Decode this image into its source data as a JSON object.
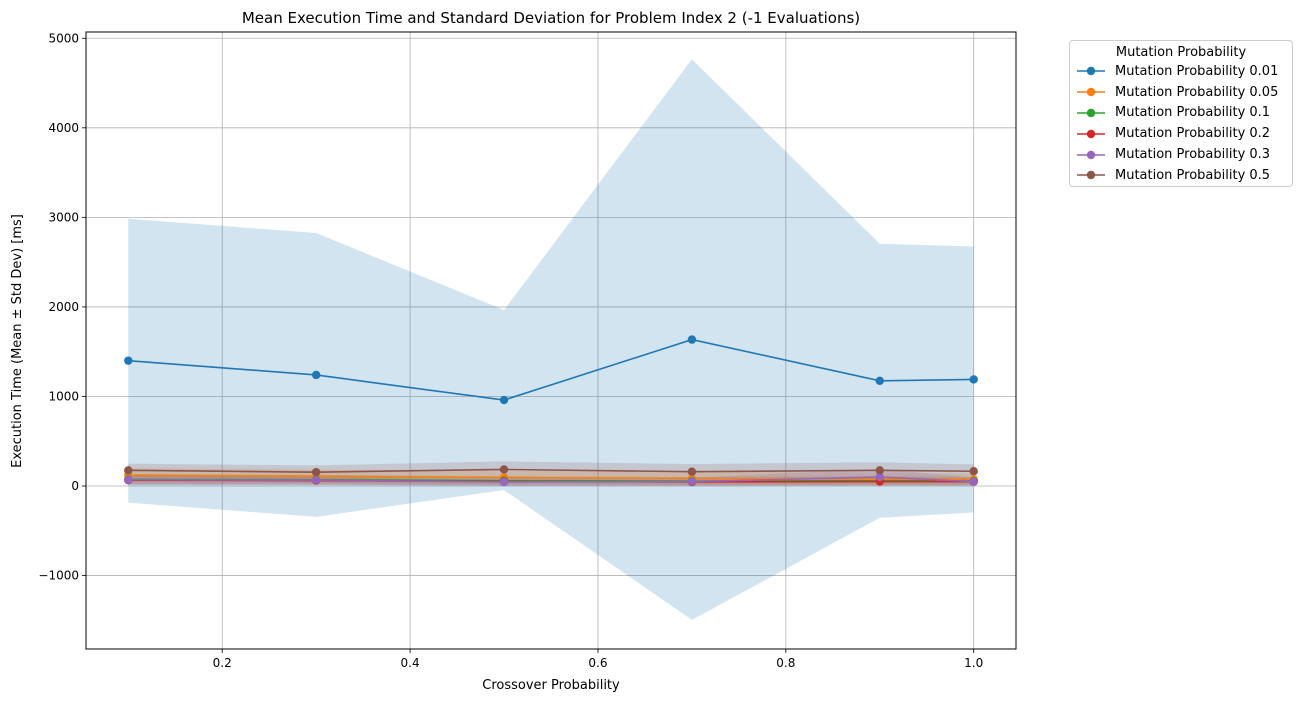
{
  "chart_data": {
    "type": "line",
    "title": "Mean Execution Time and Standard Deviation for Problem Index 2 (-1 Evaluations)",
    "xlabel": "Crossover Probability",
    "ylabel": "Execution Time (Mean ± Std Dev) [ms]",
    "xlim": [
      0.055,
      1.045
    ],
    "ylim": [
      -1820,
      5070
    ],
    "xticks": [
      0.2,
      0.4,
      0.6,
      0.8,
      1.0
    ],
    "xtick_labels": [
      "0.2",
      "0.4",
      "0.6",
      "0.8",
      "1.0"
    ],
    "yticks": [
      -1000,
      0,
      1000,
      2000,
      3000,
      4000,
      5000
    ],
    "ytick_labels": [
      "−1000",
      "0",
      "1000",
      "2000",
      "3000",
      "4000",
      "5000"
    ],
    "grid": true,
    "legend_position": "outside-top-right",
    "legend_title": "Mutation Probability",
    "x": [
      0.1,
      0.3,
      0.5,
      0.7,
      0.9,
      1.0
    ],
    "series": [
      {
        "name": "Mutation Probability 0.01",
        "color": "#1f77b4",
        "values": [
          1400,
          1240,
          960,
          1635,
          1175,
          1190
        ],
        "upper": [
          2985,
          2825,
          1965,
          4765,
          2705,
          2675
        ],
        "lower": [
          -185,
          -345,
          -45,
          -1495,
          -355,
          -295
        ]
      },
      {
        "name": "Mutation Probability 0.05",
        "color": "#ff7f0e",
        "values": [
          120,
          110,
          95,
          85,
          80,
          75
        ],
        "upper": [
          200,
          185,
          170,
          160,
          150,
          140
        ],
        "lower": [
          40,
          35,
          20,
          10,
          10,
          10
        ]
      },
      {
        "name": "Mutation Probability 0.1",
        "color": "#2ca02c",
        "values": [
          75,
          70,
          60,
          55,
          60,
          55
        ],
        "upper": [
          135,
          125,
          110,
          100,
          110,
          100
        ],
        "lower": [
          15,
          15,
          10,
          10,
          10,
          10
        ]
      },
      {
        "name": "Mutation Probability 0.2",
        "color": "#d62728",
        "values": [
          65,
          60,
          50,
          45,
          50,
          48
        ],
        "upper": [
          115,
          105,
          95,
          85,
          95,
          90
        ],
        "lower": [
          15,
          15,
          5,
          5,
          5,
          6
        ]
      },
      {
        "name": "Mutation Probability 0.3",
        "color": "#9467bd",
        "values": [
          70,
          65,
          45,
          50,
          100,
          50
        ],
        "upper": [
          130,
          120,
          90,
          95,
          190,
          95
        ],
        "lower": [
          10,
          10,
          0,
          5,
          10,
          5
        ]
      },
      {
        "name": "Mutation Probability 0.5",
        "color": "#8c564b",
        "values": [
          175,
          155,
          185,
          160,
          175,
          165
        ],
        "upper": [
          250,
          230,
          275,
          245,
          265,
          240
        ],
        "lower": [
          100,
          80,
          95,
          75,
          85,
          90
        ]
      }
    ]
  }
}
